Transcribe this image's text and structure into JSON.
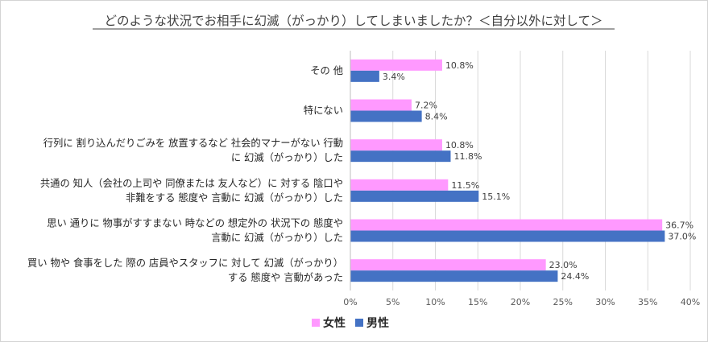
{
  "chart_data": {
    "type": "bar",
    "orientation": "horizontal",
    "title": "どのような状況でお相手に幻滅（がっかり）してしまいましたか？＜自分以外に対して＞",
    "categories": [
      [
        "その 他"
      ],
      [
        "特にない"
      ],
      [
        "行列に 割り込んだりごみを 放置するなど 社会的マナーがない 行動",
        "に 幻滅（がっかり）した"
      ],
      [
        "共通の 知人（会社の上司や 同僚または 友人など）に 対する 陰口や",
        "非難をする 態度や 言動に 幻滅（がっかり）した"
      ],
      [
        "思い 通りに 物事がすすまない 時などの 想定外の 状況下の 態度や",
        "言動に 幻滅（がっかり）した"
      ],
      [
        "買い 物や 食事をした 際の 店員やスタッフに 対して 幻滅（がっかり）",
        "する 態度や 言動があった"
      ]
    ],
    "series": [
      {
        "name": "女性",
        "color": "#ff99ff",
        "values": [
          10.8,
          7.2,
          10.8,
          11.5,
          36.7,
          23.0
        ],
        "labels": [
          "10.8%",
          "7.2%",
          "10.8%",
          "11.5%",
          "36.7%",
          "23.0%"
        ]
      },
      {
        "name": "男性",
        "color": "#4472c4",
        "values": [
          3.4,
          8.4,
          11.8,
          15.1,
          37.0,
          24.4
        ],
        "labels": [
          "3.4%",
          "8.4%",
          "11.8%",
          "15.1%",
          "37.0%",
          "24.4%"
        ]
      }
    ],
    "xlim": [
      0,
      40
    ],
    "xticks": [
      0,
      5,
      10,
      15,
      20,
      25,
      30,
      35,
      40
    ],
    "xtick_labels": [
      "0%",
      "5%",
      "10%",
      "15%",
      "20%",
      "25%",
      "30%",
      "35%",
      "40%"
    ],
    "grid": true,
    "legend_position": "bottom"
  }
}
